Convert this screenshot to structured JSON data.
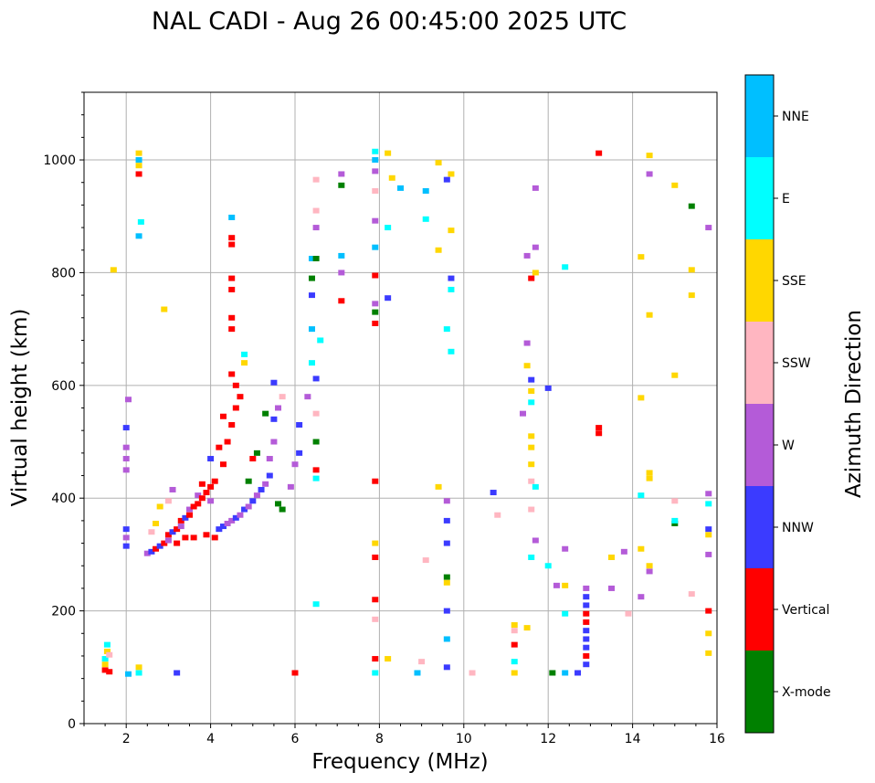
{
  "chart_data": {
    "type": "scatter",
    "title": "NAL CADI - Aug 26 00:45:00 2025 UTC",
    "xlabel": "Frequency (MHz)",
    "ylabel": "Virtual height (km)",
    "xlim": [
      1,
      16
    ],
    "ylim": [
      0,
      1120
    ],
    "xticks": [
      2,
      4,
      6,
      8,
      10,
      12,
      14,
      16
    ],
    "yticks": [
      0,
      200,
      400,
      600,
      800,
      1000
    ],
    "grid": true,
    "colorbar": {
      "label": "Azimuth Direction",
      "categories": [
        {
          "name": "X-mode",
          "color": "#008000"
        },
        {
          "name": "Vertical",
          "color": "#ff0000"
        },
        {
          "name": "NNW",
          "color": "#3b3bff"
        },
        {
          "name": "W",
          "color": "#b45bd8"
        },
        {
          "name": "SSW",
          "color": "#ffb6c1"
        },
        {
          "name": "SSE",
          "color": "#ffd700"
        },
        {
          "name": "E",
          "color": "#00ffff"
        },
        {
          "name": "NNE",
          "color": "#00bfff"
        }
      ]
    },
    "points": [
      {
        "f": 1.5,
        "h": 95,
        "c": 1
      },
      {
        "f": 1.5,
        "h": 105,
        "c": 5
      },
      {
        "f": 1.5,
        "h": 115,
        "c": 6
      },
      {
        "f": 1.55,
        "h": 128,
        "c": 5
      },
      {
        "f": 1.55,
        "h": 140,
        "c": 6
      },
      {
        "f": 1.6,
        "h": 92,
        "c": 1
      },
      {
        "f": 1.6,
        "h": 122,
        "c": 4
      },
      {
        "f": 1.7,
        "h": 805,
        "c": 5
      },
      {
        "f": 2.0,
        "h": 315,
        "c": 2
      },
      {
        "f": 2.0,
        "h": 330,
        "c": 3
      },
      {
        "f": 2.0,
        "h": 345,
        "c": 2
      },
      {
        "f": 2.0,
        "h": 450,
        "c": 3
      },
      {
        "f": 2.0,
        "h": 470,
        "c": 3
      },
      {
        "f": 2.0,
        "h": 490,
        "c": 3
      },
      {
        "f": 2.0,
        "h": 525,
        "c": 2
      },
      {
        "f": 2.05,
        "h": 575,
        "c": 3
      },
      {
        "f": 2.05,
        "h": 88,
        "c": 7
      },
      {
        "f": 2.3,
        "h": 90,
        "c": 6
      },
      {
        "f": 2.3,
        "h": 100,
        "c": 5
      },
      {
        "f": 2.3,
        "h": 865,
        "c": 7
      },
      {
        "f": 2.35,
        "h": 890,
        "c": 6
      },
      {
        "f": 2.3,
        "h": 975,
        "c": 1
      },
      {
        "f": 2.3,
        "h": 990,
        "c": 5
      },
      {
        "f": 2.3,
        "h": 1000,
        "c": 7
      },
      {
        "f": 2.3,
        "h": 1012,
        "c": 5
      },
      {
        "f": 2.5,
        "h": 302,
        "c": 3
      },
      {
        "f": 2.6,
        "h": 305,
        "c": 2
      },
      {
        "f": 2.6,
        "h": 340,
        "c": 4
      },
      {
        "f": 2.7,
        "h": 310,
        "c": 1
      },
      {
        "f": 2.7,
        "h": 355,
        "c": 5
      },
      {
        "f": 2.8,
        "h": 315,
        "c": 2
      },
      {
        "f": 2.8,
        "h": 385,
        "c": 5
      },
      {
        "f": 2.9,
        "h": 320,
        "c": 1
      },
      {
        "f": 2.9,
        "h": 735,
        "c": 5
      },
      {
        "f": 3.0,
        "h": 325,
        "c": 3
      },
      {
        "f": 3.0,
        "h": 335,
        "c": 1
      },
      {
        "f": 3.0,
        "h": 395,
        "c": 4
      },
      {
        "f": 3.1,
        "h": 340,
        "c": 2
      },
      {
        "f": 3.1,
        "h": 415,
        "c": 3
      },
      {
        "f": 3.2,
        "h": 345,
        "c": 1
      },
      {
        "f": 3.2,
        "h": 320,
        "c": 1
      },
      {
        "f": 3.2,
        "h": 90,
        "c": 2
      },
      {
        "f": 3.3,
        "h": 350,
        "c": 3
      },
      {
        "f": 3.3,
        "h": 360,
        "c": 1
      },
      {
        "f": 3.4,
        "h": 365,
        "c": 2
      },
      {
        "f": 3.4,
        "h": 330,
        "c": 1
      },
      {
        "f": 3.5,
        "h": 370,
        "c": 1
      },
      {
        "f": 3.5,
        "h": 380,
        "c": 3
      },
      {
        "f": 3.6,
        "h": 385,
        "c": 1
      },
      {
        "f": 3.6,
        "h": 330,
        "c": 1
      },
      {
        "f": 3.7,
        "h": 390,
        "c": 1
      },
      {
        "f": 3.7,
        "h": 405,
        "c": 3
      },
      {
        "f": 3.8,
        "h": 400,
        "c": 1
      },
      {
        "f": 3.8,
        "h": 425,
        "c": 1
      },
      {
        "f": 3.9,
        "h": 410,
        "c": 1
      },
      {
        "f": 3.9,
        "h": 335,
        "c": 1
      },
      {
        "f": 4.0,
        "h": 395,
        "c": 3
      },
      {
        "f": 4.0,
        "h": 420,
        "c": 1
      },
      {
        "f": 4.0,
        "h": 470,
        "c": 2
      },
      {
        "f": 4.1,
        "h": 330,
        "c": 1
      },
      {
        "f": 4.1,
        "h": 430,
        "c": 1
      },
      {
        "f": 4.2,
        "h": 345,
        "c": 2
      },
      {
        "f": 4.2,
        "h": 490,
        "c": 1
      },
      {
        "f": 4.3,
        "h": 350,
        "c": 2
      },
      {
        "f": 4.3,
        "h": 460,
        "c": 1
      },
      {
        "f": 4.3,
        "h": 545,
        "c": 1
      },
      {
        "f": 4.4,
        "h": 355,
        "c": 3
      },
      {
        "f": 4.4,
        "h": 500,
        "c": 1
      },
      {
        "f": 4.5,
        "h": 360,
        "c": 3
      },
      {
        "f": 4.5,
        "h": 530,
        "c": 1
      },
      {
        "f": 4.5,
        "h": 620,
        "c": 1
      },
      {
        "f": 4.5,
        "h": 700,
        "c": 1
      },
      {
        "f": 4.5,
        "h": 720,
        "c": 1
      },
      {
        "f": 4.5,
        "h": 770,
        "c": 1
      },
      {
        "f": 4.5,
        "h": 790,
        "c": 1
      },
      {
        "f": 4.5,
        "h": 850,
        "c": 1
      },
      {
        "f": 4.5,
        "h": 862,
        "c": 1
      },
      {
        "f": 4.5,
        "h": 898,
        "c": 7
      },
      {
        "f": 4.6,
        "h": 365,
        "c": 2
      },
      {
        "f": 4.6,
        "h": 560,
        "c": 1
      },
      {
        "f": 4.6,
        "h": 600,
        "c": 1
      },
      {
        "f": 4.7,
        "h": 370,
        "c": 3
      },
      {
        "f": 4.7,
        "h": 580,
        "c": 1
      },
      {
        "f": 4.8,
        "h": 380,
        "c": 2
      },
      {
        "f": 4.8,
        "h": 640,
        "c": 5
      },
      {
        "f": 4.8,
        "h": 655,
        "c": 6
      },
      {
        "f": 4.9,
        "h": 385,
        "c": 3
      },
      {
        "f": 4.9,
        "h": 430,
        "c": 0
      },
      {
        "f": 5.0,
        "h": 395,
        "c": 2
      },
      {
        "f": 5.0,
        "h": 470,
        "c": 1
      },
      {
        "f": 5.1,
        "h": 405,
        "c": 3
      },
      {
        "f": 5.1,
        "h": 480,
        "c": 0
      },
      {
        "f": 5.2,
        "h": 415,
        "c": 2
      },
      {
        "f": 5.3,
        "h": 425,
        "c": 3
      },
      {
        "f": 5.3,
        "h": 550,
        "c": 0
      },
      {
        "f": 5.4,
        "h": 440,
        "c": 2
      },
      {
        "f": 5.4,
        "h": 470,
        "c": 3
      },
      {
        "f": 5.5,
        "h": 500,
        "c": 3
      },
      {
        "f": 5.5,
        "h": 540,
        "c": 2
      },
      {
        "f": 5.5,
        "h": 605,
        "c": 2
      },
      {
        "f": 5.6,
        "h": 390,
        "c": 0
      },
      {
        "f": 5.6,
        "h": 560,
        "c": 3
      },
      {
        "f": 5.7,
        "h": 380,
        "c": 0
      },
      {
        "f": 5.7,
        "h": 580,
        "c": 4
      },
      {
        "f": 5.9,
        "h": 420,
        "c": 3
      },
      {
        "f": 6.0,
        "h": 90,
        "c": 1
      },
      {
        "f": 6.0,
        "h": 460,
        "c": 3
      },
      {
        "f": 6.1,
        "h": 480,
        "c": 2
      },
      {
        "f": 6.1,
        "h": 530,
        "c": 2
      },
      {
        "f": 6.3,
        "h": 580,
        "c": 3
      },
      {
        "f": 6.4,
        "h": 640,
        "c": 6
      },
      {
        "f": 6.4,
        "h": 700,
        "c": 7
      },
      {
        "f": 6.4,
        "h": 760,
        "c": 2
      },
      {
        "f": 6.4,
        "h": 790,
        "c": 0
      },
      {
        "f": 6.4,
        "h": 825,
        "c": 7
      },
      {
        "f": 6.5,
        "h": 435,
        "c": 6
      },
      {
        "f": 6.5,
        "h": 450,
        "c": 1
      },
      {
        "f": 6.5,
        "h": 500,
        "c": 0
      },
      {
        "f": 6.5,
        "h": 550,
        "c": 4
      },
      {
        "f": 6.5,
        "h": 612,
        "c": 2
      },
      {
        "f": 6.5,
        "h": 825,
        "c": 0
      },
      {
        "f": 6.5,
        "h": 880,
        "c": 3
      },
      {
        "f": 6.5,
        "h": 910,
        "c": 4
      },
      {
        "f": 6.5,
        "h": 965,
        "c": 4
      },
      {
        "f": 6.5,
        "h": 212,
        "c": 6
      },
      {
        "f": 6.6,
        "h": 680,
        "c": 6
      },
      {
        "f": 7.1,
        "h": 750,
        "c": 1
      },
      {
        "f": 7.1,
        "h": 800,
        "c": 3
      },
      {
        "f": 7.1,
        "h": 830,
        "c": 7
      },
      {
        "f": 7.1,
        "h": 955,
        "c": 0
      },
      {
        "f": 7.1,
        "h": 975,
        "c": 3
      },
      {
        "f": 7.9,
        "h": 90,
        "c": 6
      },
      {
        "f": 7.9,
        "h": 115,
        "c": 1
      },
      {
        "f": 7.9,
        "h": 185,
        "c": 4
      },
      {
        "f": 7.9,
        "h": 220,
        "c": 1
      },
      {
        "f": 7.9,
        "h": 295,
        "c": 1
      },
      {
        "f": 7.9,
        "h": 320,
        "c": 5
      },
      {
        "f": 7.9,
        "h": 430,
        "c": 1
      },
      {
        "f": 7.9,
        "h": 710,
        "c": 1
      },
      {
        "f": 7.9,
        "h": 730,
        "c": 0
      },
      {
        "f": 7.9,
        "h": 745,
        "c": 3
      },
      {
        "f": 7.9,
        "h": 795,
        "c": 1
      },
      {
        "f": 7.9,
        "h": 845,
        "c": 7
      },
      {
        "f": 7.9,
        "h": 892,
        "c": 3
      },
      {
        "f": 7.9,
        "h": 945,
        "c": 4
      },
      {
        "f": 7.9,
        "h": 980,
        "c": 3
      },
      {
        "f": 7.9,
        "h": 1000,
        "c": 7
      },
      {
        "f": 7.9,
        "h": 1015,
        "c": 6
      },
      {
        "f": 8.2,
        "h": 115,
        "c": 5
      },
      {
        "f": 8.2,
        "h": 755,
        "c": 2
      },
      {
        "f": 8.2,
        "h": 880,
        "c": 6
      },
      {
        "f": 8.3,
        "h": 968,
        "c": 5
      },
      {
        "f": 8.2,
        "h": 1012,
        "c": 5
      },
      {
        "f": 8.5,
        "h": 950,
        "c": 7
      },
      {
        "f": 8.9,
        "h": 90,
        "c": 7
      },
      {
        "f": 9.0,
        "h": 110,
        "c": 4
      },
      {
        "f": 9.1,
        "h": 290,
        "c": 4
      },
      {
        "f": 9.1,
        "h": 895,
        "c": 6
      },
      {
        "f": 9.1,
        "h": 945,
        "c": 7
      },
      {
        "f": 9.4,
        "h": 420,
        "c": 5
      },
      {
        "f": 9.4,
        "h": 840,
        "c": 5
      },
      {
        "f": 9.4,
        "h": 995,
        "c": 5
      },
      {
        "f": 9.6,
        "h": 100,
        "c": 2
      },
      {
        "f": 9.6,
        "h": 150,
        "c": 7
      },
      {
        "f": 9.6,
        "h": 200,
        "c": 2
      },
      {
        "f": 9.6,
        "h": 250,
        "c": 5
      },
      {
        "f": 9.6,
        "h": 260,
        "c": 0
      },
      {
        "f": 9.6,
        "h": 320,
        "c": 2
      },
      {
        "f": 9.6,
        "h": 360,
        "c": 2
      },
      {
        "f": 9.6,
        "h": 395,
        "c": 3
      },
      {
        "f": 9.6,
        "h": 700,
        "c": 6
      },
      {
        "f": 9.6,
        "h": 965,
        "c": 2
      },
      {
        "f": 9.7,
        "h": 660,
        "c": 6
      },
      {
        "f": 9.7,
        "h": 770,
        "c": 6
      },
      {
        "f": 9.7,
        "h": 790,
        "c": 2
      },
      {
        "f": 9.7,
        "h": 875,
        "c": 5
      },
      {
        "f": 9.7,
        "h": 975,
        "c": 5
      },
      {
        "f": 10.2,
        "h": 90,
        "c": 4
      },
      {
        "f": 10.7,
        "h": 410,
        "c": 2
      },
      {
        "f": 10.8,
        "h": 370,
        "c": 4
      },
      {
        "f": 11.2,
        "h": 90,
        "c": 5
      },
      {
        "f": 11.2,
        "h": 110,
        "c": 6
      },
      {
        "f": 11.2,
        "h": 140,
        "c": 1
      },
      {
        "f": 11.2,
        "h": 165,
        "c": 4
      },
      {
        "f": 11.2,
        "h": 175,
        "c": 5
      },
      {
        "f": 11.4,
        "h": 550,
        "c": 3
      },
      {
        "f": 11.5,
        "h": 170,
        "c": 5
      },
      {
        "f": 11.5,
        "h": 635,
        "c": 5
      },
      {
        "f": 11.5,
        "h": 675,
        "c": 3
      },
      {
        "f": 11.5,
        "h": 830,
        "c": 3
      },
      {
        "f": 11.6,
        "h": 295,
        "c": 6
      },
      {
        "f": 11.6,
        "h": 380,
        "c": 4
      },
      {
        "f": 11.6,
        "h": 430,
        "c": 4
      },
      {
        "f": 11.6,
        "h": 460,
        "c": 5
      },
      {
        "f": 11.6,
        "h": 490,
        "c": 5
      },
      {
        "f": 11.6,
        "h": 510,
        "c": 5
      },
      {
        "f": 11.6,
        "h": 570,
        "c": 6
      },
      {
        "f": 11.6,
        "h": 590,
        "c": 5
      },
      {
        "f": 11.6,
        "h": 610,
        "c": 2
      },
      {
        "f": 11.6,
        "h": 790,
        "c": 1
      },
      {
        "f": 11.7,
        "h": 325,
        "c": 3
      },
      {
        "f": 11.7,
        "h": 420,
        "c": 6
      },
      {
        "f": 11.7,
        "h": 800,
        "c": 5
      },
      {
        "f": 11.7,
        "h": 845,
        "c": 3
      },
      {
        "f": 11.7,
        "h": 950,
        "c": 3
      },
      {
        "f": 12.0,
        "h": 280,
        "c": 6
      },
      {
        "f": 12.0,
        "h": 595,
        "c": 2
      },
      {
        "f": 12.1,
        "h": 90,
        "c": 0
      },
      {
        "f": 12.2,
        "h": 245,
        "c": 3
      },
      {
        "f": 12.4,
        "h": 90,
        "c": 7
      },
      {
        "f": 12.4,
        "h": 195,
        "c": 6
      },
      {
        "f": 12.4,
        "h": 245,
        "c": 5
      },
      {
        "f": 12.4,
        "h": 310,
        "c": 3
      },
      {
        "f": 12.4,
        "h": 810,
        "c": 6
      },
      {
        "f": 12.7,
        "h": 90,
        "c": 2
      },
      {
        "f": 12.9,
        "h": 105,
        "c": 2
      },
      {
        "f": 12.9,
        "h": 120,
        "c": 1
      },
      {
        "f": 12.9,
        "h": 135,
        "c": 2
      },
      {
        "f": 12.9,
        "h": 150,
        "c": 2
      },
      {
        "f": 12.9,
        "h": 165,
        "c": 2
      },
      {
        "f": 12.9,
        "h": 180,
        "c": 1
      },
      {
        "f": 12.9,
        "h": 195,
        "c": 1
      },
      {
        "f": 12.9,
        "h": 210,
        "c": 2
      },
      {
        "f": 12.9,
        "h": 225,
        "c": 2
      },
      {
        "f": 12.9,
        "h": 240,
        "c": 3
      },
      {
        "f": 13.2,
        "h": 515,
        "c": 1
      },
      {
        "f": 13.2,
        "h": 525,
        "c": 1
      },
      {
        "f": 13.2,
        "h": 1012,
        "c": 1
      },
      {
        "f": 13.5,
        "h": 240,
        "c": 3
      },
      {
        "f": 13.5,
        "h": 295,
        "c": 5
      },
      {
        "f": 13.8,
        "h": 305,
        "c": 3
      },
      {
        "f": 13.9,
        "h": 195,
        "c": 4
      },
      {
        "f": 14.2,
        "h": 225,
        "c": 3
      },
      {
        "f": 14.2,
        "h": 310,
        "c": 5
      },
      {
        "f": 14.2,
        "h": 405,
        "c": 6
      },
      {
        "f": 14.2,
        "h": 578,
        "c": 5
      },
      {
        "f": 14.2,
        "h": 828,
        "c": 5
      },
      {
        "f": 14.4,
        "h": 270,
        "c": 3
      },
      {
        "f": 14.4,
        "h": 280,
        "c": 5
      },
      {
        "f": 14.4,
        "h": 435,
        "c": 5
      },
      {
        "f": 14.4,
        "h": 445,
        "c": 5
      },
      {
        "f": 14.4,
        "h": 725,
        "c": 5
      },
      {
        "f": 14.4,
        "h": 975,
        "c": 3
      },
      {
        "f": 14.4,
        "h": 1008,
        "c": 5
      },
      {
        "f": 15.0,
        "h": 355,
        "c": 0
      },
      {
        "f": 15.0,
        "h": 360,
        "c": 6
      },
      {
        "f": 15.0,
        "h": 395,
        "c": 4
      },
      {
        "f": 15.0,
        "h": 618,
        "c": 5
      },
      {
        "f": 15.0,
        "h": 955,
        "c": 5
      },
      {
        "f": 15.4,
        "h": 230,
        "c": 4
      },
      {
        "f": 15.4,
        "h": 760,
        "c": 5
      },
      {
        "f": 15.4,
        "h": 805,
        "c": 5
      },
      {
        "f": 15.4,
        "h": 918,
        "c": 0
      },
      {
        "f": 15.8,
        "h": 125,
        "c": 5
      },
      {
        "f": 15.8,
        "h": 160,
        "c": 5
      },
      {
        "f": 15.8,
        "h": 200,
        "c": 1
      },
      {
        "f": 15.8,
        "h": 300,
        "c": 3
      },
      {
        "f": 15.8,
        "h": 335,
        "c": 5
      },
      {
        "f": 15.8,
        "h": 345,
        "c": 2
      },
      {
        "f": 15.8,
        "h": 390,
        "c": 6
      },
      {
        "f": 15.8,
        "h": 408,
        "c": 3
      },
      {
        "f": 15.8,
        "h": 880,
        "c": 3
      }
    ]
  }
}
